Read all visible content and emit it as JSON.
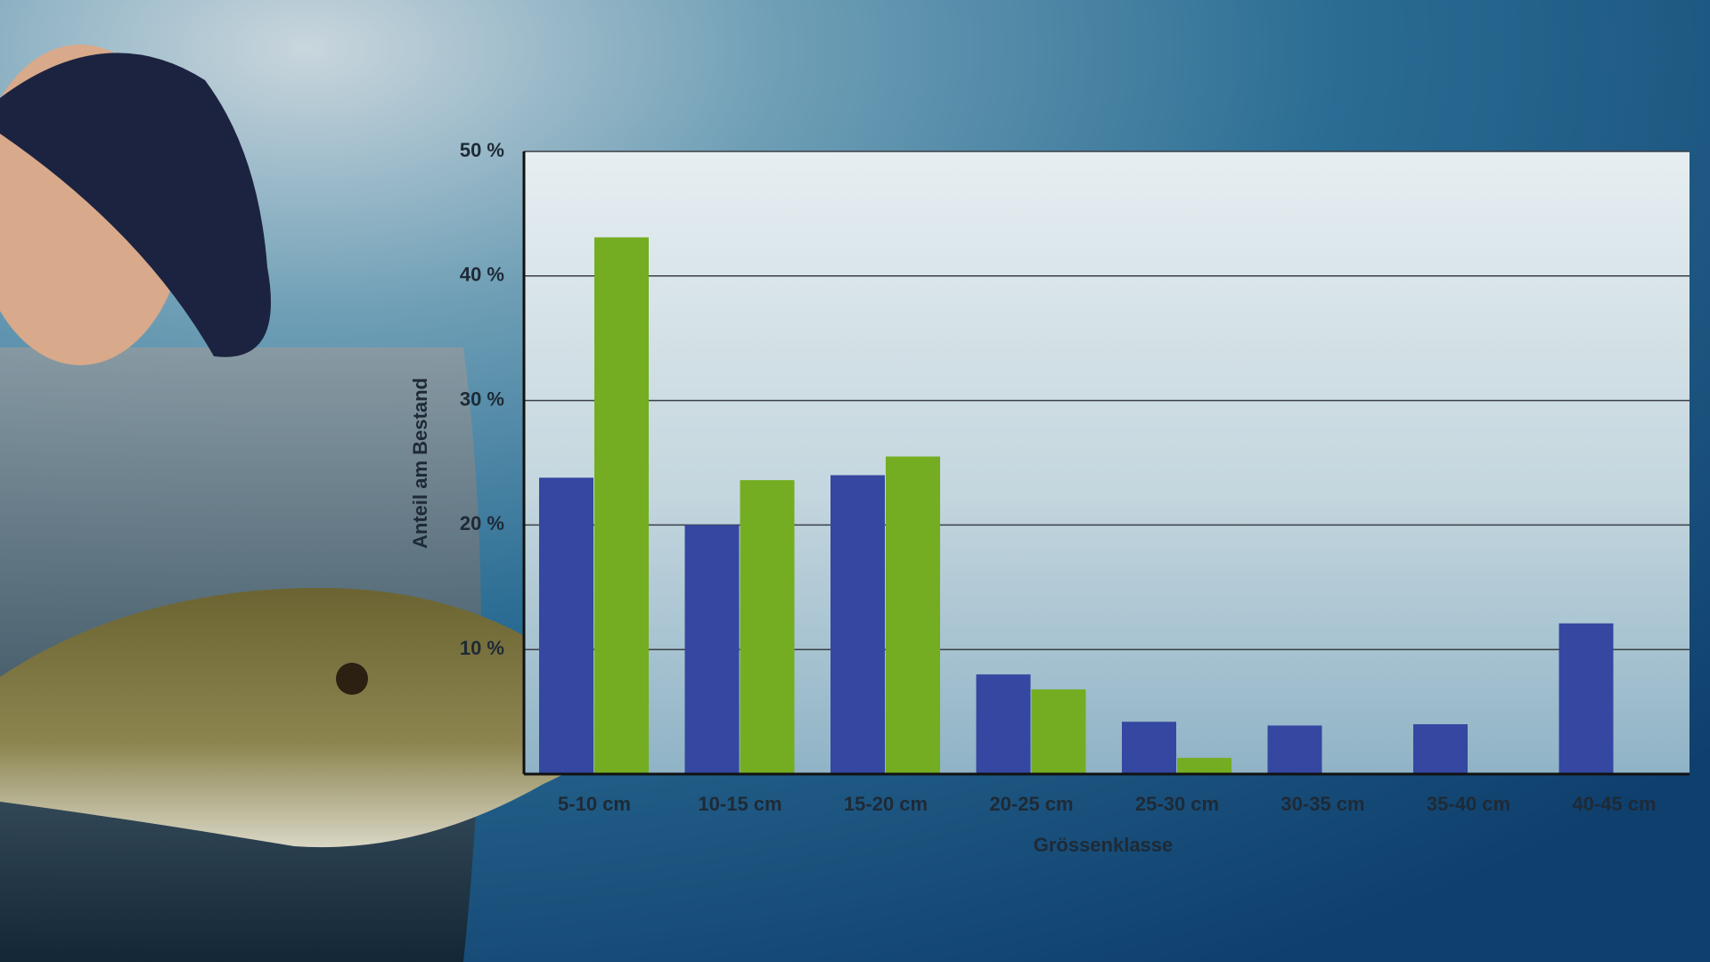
{
  "chart_data": {
    "type": "bar",
    "x_label": "Grössenklasse",
    "y_label": "Anteil am Bestand",
    "categories": [
      "5-10 cm",
      "10-15 cm",
      "15-20 cm",
      "20-25 cm",
      "25-30 cm",
      "30-35 cm",
      "35-40 cm",
      "40-45 cm"
    ],
    "series": [
      {
        "color": "#3547a0",
        "values": [
          23.8,
          20,
          24,
          8,
          4.2,
          3.9,
          4,
          12.1
        ]
      },
      {
        "color": "#74ad21",
        "values": [
          43.1,
          23.6,
          25.5,
          6.8,
          1.3,
          0,
          0,
          0
        ]
      }
    ],
    "ylim": [
      0,
      50
    ],
    "yticks": [
      {
        "value": 10,
        "label": "10 %"
      },
      {
        "value": 20,
        "label": "20 %"
      },
      {
        "value": 30,
        "label": "30 %"
      },
      {
        "value": 40,
        "label": "40 %"
      },
      {
        "value": 50,
        "label": "50 %"
      }
    ],
    "grid": true
  }
}
